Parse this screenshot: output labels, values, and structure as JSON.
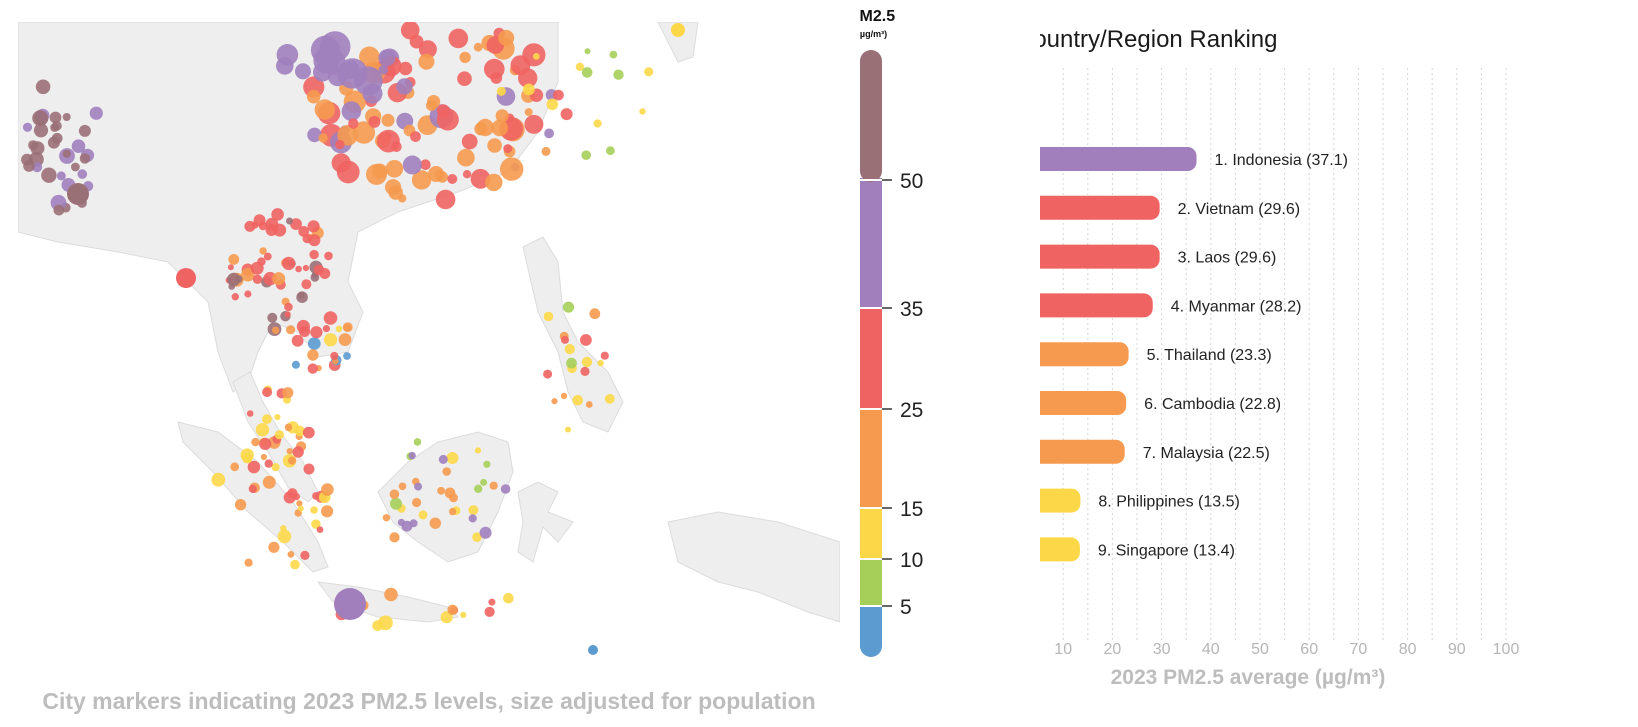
{
  "map": {
    "caption": "City markers indicating 2023 PM2.5 levels, size adjusted for population",
    "land_color": "#f0f0f0",
    "sea_color": "#ffffff"
  },
  "legend": {
    "title": "PM2.5",
    "unit": "(µg/m³)",
    "bands": [
      {
        "from": 0,
        "to": 5,
        "color": "#5b9bd0"
      },
      {
        "from": 5,
        "to": 10,
        "color": "#a6cf5a"
      },
      {
        "from": 10,
        "to": 15,
        "color": "#fcd848"
      },
      {
        "from": 15,
        "to": 25,
        "color": "#f59a4f"
      },
      {
        "from": 25,
        "to": 35,
        "color": "#ef6462"
      },
      {
        "from": 35,
        "to": 50,
        "color": "#a07fbc"
      },
      {
        "from": 50,
        "to": 60,
        "color": "#9a7077"
      }
    ],
    "tick_labels": [
      "5",
      "10",
      "15",
      "25",
      "35",
      "50"
    ]
  },
  "chart_data": {
    "type": "bar",
    "orientation": "horizontal",
    "title": "Country/Region Ranking",
    "xlabel": "2023 PM2.5 average (µg/m³)",
    "xlim": [
      0,
      100
    ],
    "xticks": [
      "0",
      "10",
      "20",
      "30",
      "40",
      "50",
      "60",
      "70",
      "80",
      "90",
      "100"
    ],
    "grid": true,
    "bars": [
      {
        "label": "1. Indonesia (37.1)",
        "value": 37.1,
        "color": "#a07fbc"
      },
      {
        "label": "2. Vietnam (29.6)",
        "value": 29.6,
        "color": "#ef6462"
      },
      {
        "label": "3. Laos (29.6)",
        "value": 29.6,
        "color": "#ef6462"
      },
      {
        "label": "4. Myanmar (28.2)",
        "value": 28.2,
        "color": "#ef6462"
      },
      {
        "label": "5. Thailand (23.3)",
        "value": 23.3,
        "color": "#f59a4f"
      },
      {
        "label": "6. Cambodia (22.8)",
        "value": 22.8,
        "color": "#f59a4f"
      },
      {
        "label": "7. Malaysia (22.5)",
        "value": 22.5,
        "color": "#f59a4f"
      },
      {
        "label": "8. Philippines (13.5)",
        "value": 13.5,
        "color": "#fcd848"
      },
      {
        "label": "9. Singapore (13.4)",
        "value": 13.4,
        "color": "#fcd848"
      }
    ]
  }
}
